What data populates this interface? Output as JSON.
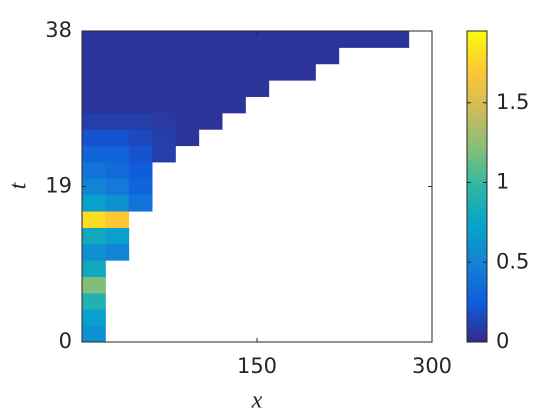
{
  "chart_data": {
    "type": "heatmap",
    "xlabel": "x",
    "ylabel": "t",
    "xlim": [
      0,
      300
    ],
    "xticks": [
      150,
      300
    ],
    "ylim": [
      0,
      38
    ],
    "yticks": [
      0,
      19,
      38
    ],
    "x_bins": [
      0,
      20,
      40,
      60,
      80,
      100,
      120,
      140,
      160,
      180,
      200,
      220,
      240,
      260,
      280,
      300
    ],
    "t_bins": [
      0,
      2,
      4,
      6,
      8,
      10,
      12,
      14,
      16,
      18,
      20,
      22,
      24,
      26,
      28,
      30,
      32,
      34,
      36,
      38
    ],
    "z": [
      [
        0.6,
        null,
        null,
        null,
        null,
        null,
        null,
        null,
        null,
        null,
        null,
        null,
        null,
        null,
        null
      ],
      [
        0.7,
        null,
        null,
        null,
        null,
        null,
        null,
        null,
        null,
        null,
        null,
        null,
        null,
        null,
        null
      ],
      [
        0.9,
        null,
        null,
        null,
        null,
        null,
        null,
        null,
        null,
        null,
        null,
        null,
        null,
        null,
        null
      ],
      [
        1.2,
        null,
        null,
        null,
        null,
        null,
        null,
        null,
        null,
        null,
        null,
        null,
        null,
        null,
        null
      ],
      [
        0.8,
        null,
        null,
        null,
        null,
        null,
        null,
        null,
        null,
        null,
        null,
        null,
        null,
        null,
        null
      ],
      [
        0.6,
        0.5,
        null,
        null,
        null,
        null,
        null,
        null,
        null,
        null,
        null,
        null,
        null,
        null,
        null
      ],
      [
        0.8,
        0.7,
        null,
        null,
        null,
        null,
        null,
        null,
        null,
        null,
        null,
        null,
        null,
        null,
        null
      ],
      [
        1.8,
        1.7,
        null,
        null,
        null,
        null,
        null,
        null,
        null,
        null,
        null,
        null,
        null,
        null,
        null
      ],
      [
        0.7,
        0.6,
        0.4,
        null,
        null,
        null,
        null,
        null,
        null,
        null,
        null,
        null,
        null,
        null,
        null
      ],
      [
        0.5,
        0.45,
        0.3,
        null,
        null,
        null,
        null,
        null,
        null,
        null,
        null,
        null,
        null,
        null,
        null
      ],
      [
        0.4,
        0.35,
        0.25,
        null,
        null,
        null,
        null,
        null,
        null,
        null,
        null,
        null,
        null,
        null,
        null
      ],
      [
        0.3,
        0.3,
        0.2,
        0.1,
        null,
        null,
        null,
        null,
        null,
        null,
        null,
        null,
        null,
        null,
        null
      ],
      [
        0.2,
        0.2,
        0.15,
        0.1,
        0.05,
        null,
        null,
        null,
        null,
        null,
        null,
        null,
        null,
        null,
        null
      ],
      [
        0.1,
        0.1,
        0.1,
        0.08,
        0.05,
        0.05,
        null,
        null,
        null,
        null,
        null,
        null,
        null,
        null,
        null
      ],
      [
        0.05,
        0.05,
        0.05,
        0.05,
        0.05,
        0.05,
        0.05,
        null,
        null,
        null,
        null,
        null,
        null,
        null,
        null
      ],
      [
        0.05,
        0.05,
        0.05,
        0.05,
        0.05,
        0.05,
        0.05,
        0.05,
        null,
        null,
        null,
        null,
        null,
        null,
        null
      ],
      [
        0.05,
        0.05,
        0.05,
        0.05,
        0.05,
        0.05,
        0.05,
        0.05,
        0.05,
        0.05,
        null,
        null,
        null,
        null,
        null
      ],
      [
        0.05,
        0.05,
        0.05,
        0.05,
        0.05,
        0.05,
        0.05,
        0.05,
        0.05,
        0.05,
        0.05,
        null,
        null,
        null,
        null
      ],
      [
        0.05,
        0.05,
        0.05,
        0.05,
        0.05,
        0.05,
        0.05,
        0.05,
        0.05,
        0.05,
        0.05,
        0.05,
        0.05,
        0.05,
        null
      ]
    ],
    "clim": [
      0,
      1.95
    ],
    "cticks": [
      0,
      0.5,
      1,
      1.5
    ],
    "colormap": [
      "#352a87",
      "#0f5cdd",
      "#1481d6",
      "#06a4ca",
      "#2eb7a4",
      "#87bf77",
      "#d1bb59",
      "#fec832",
      "#f9fb0e"
    ]
  }
}
